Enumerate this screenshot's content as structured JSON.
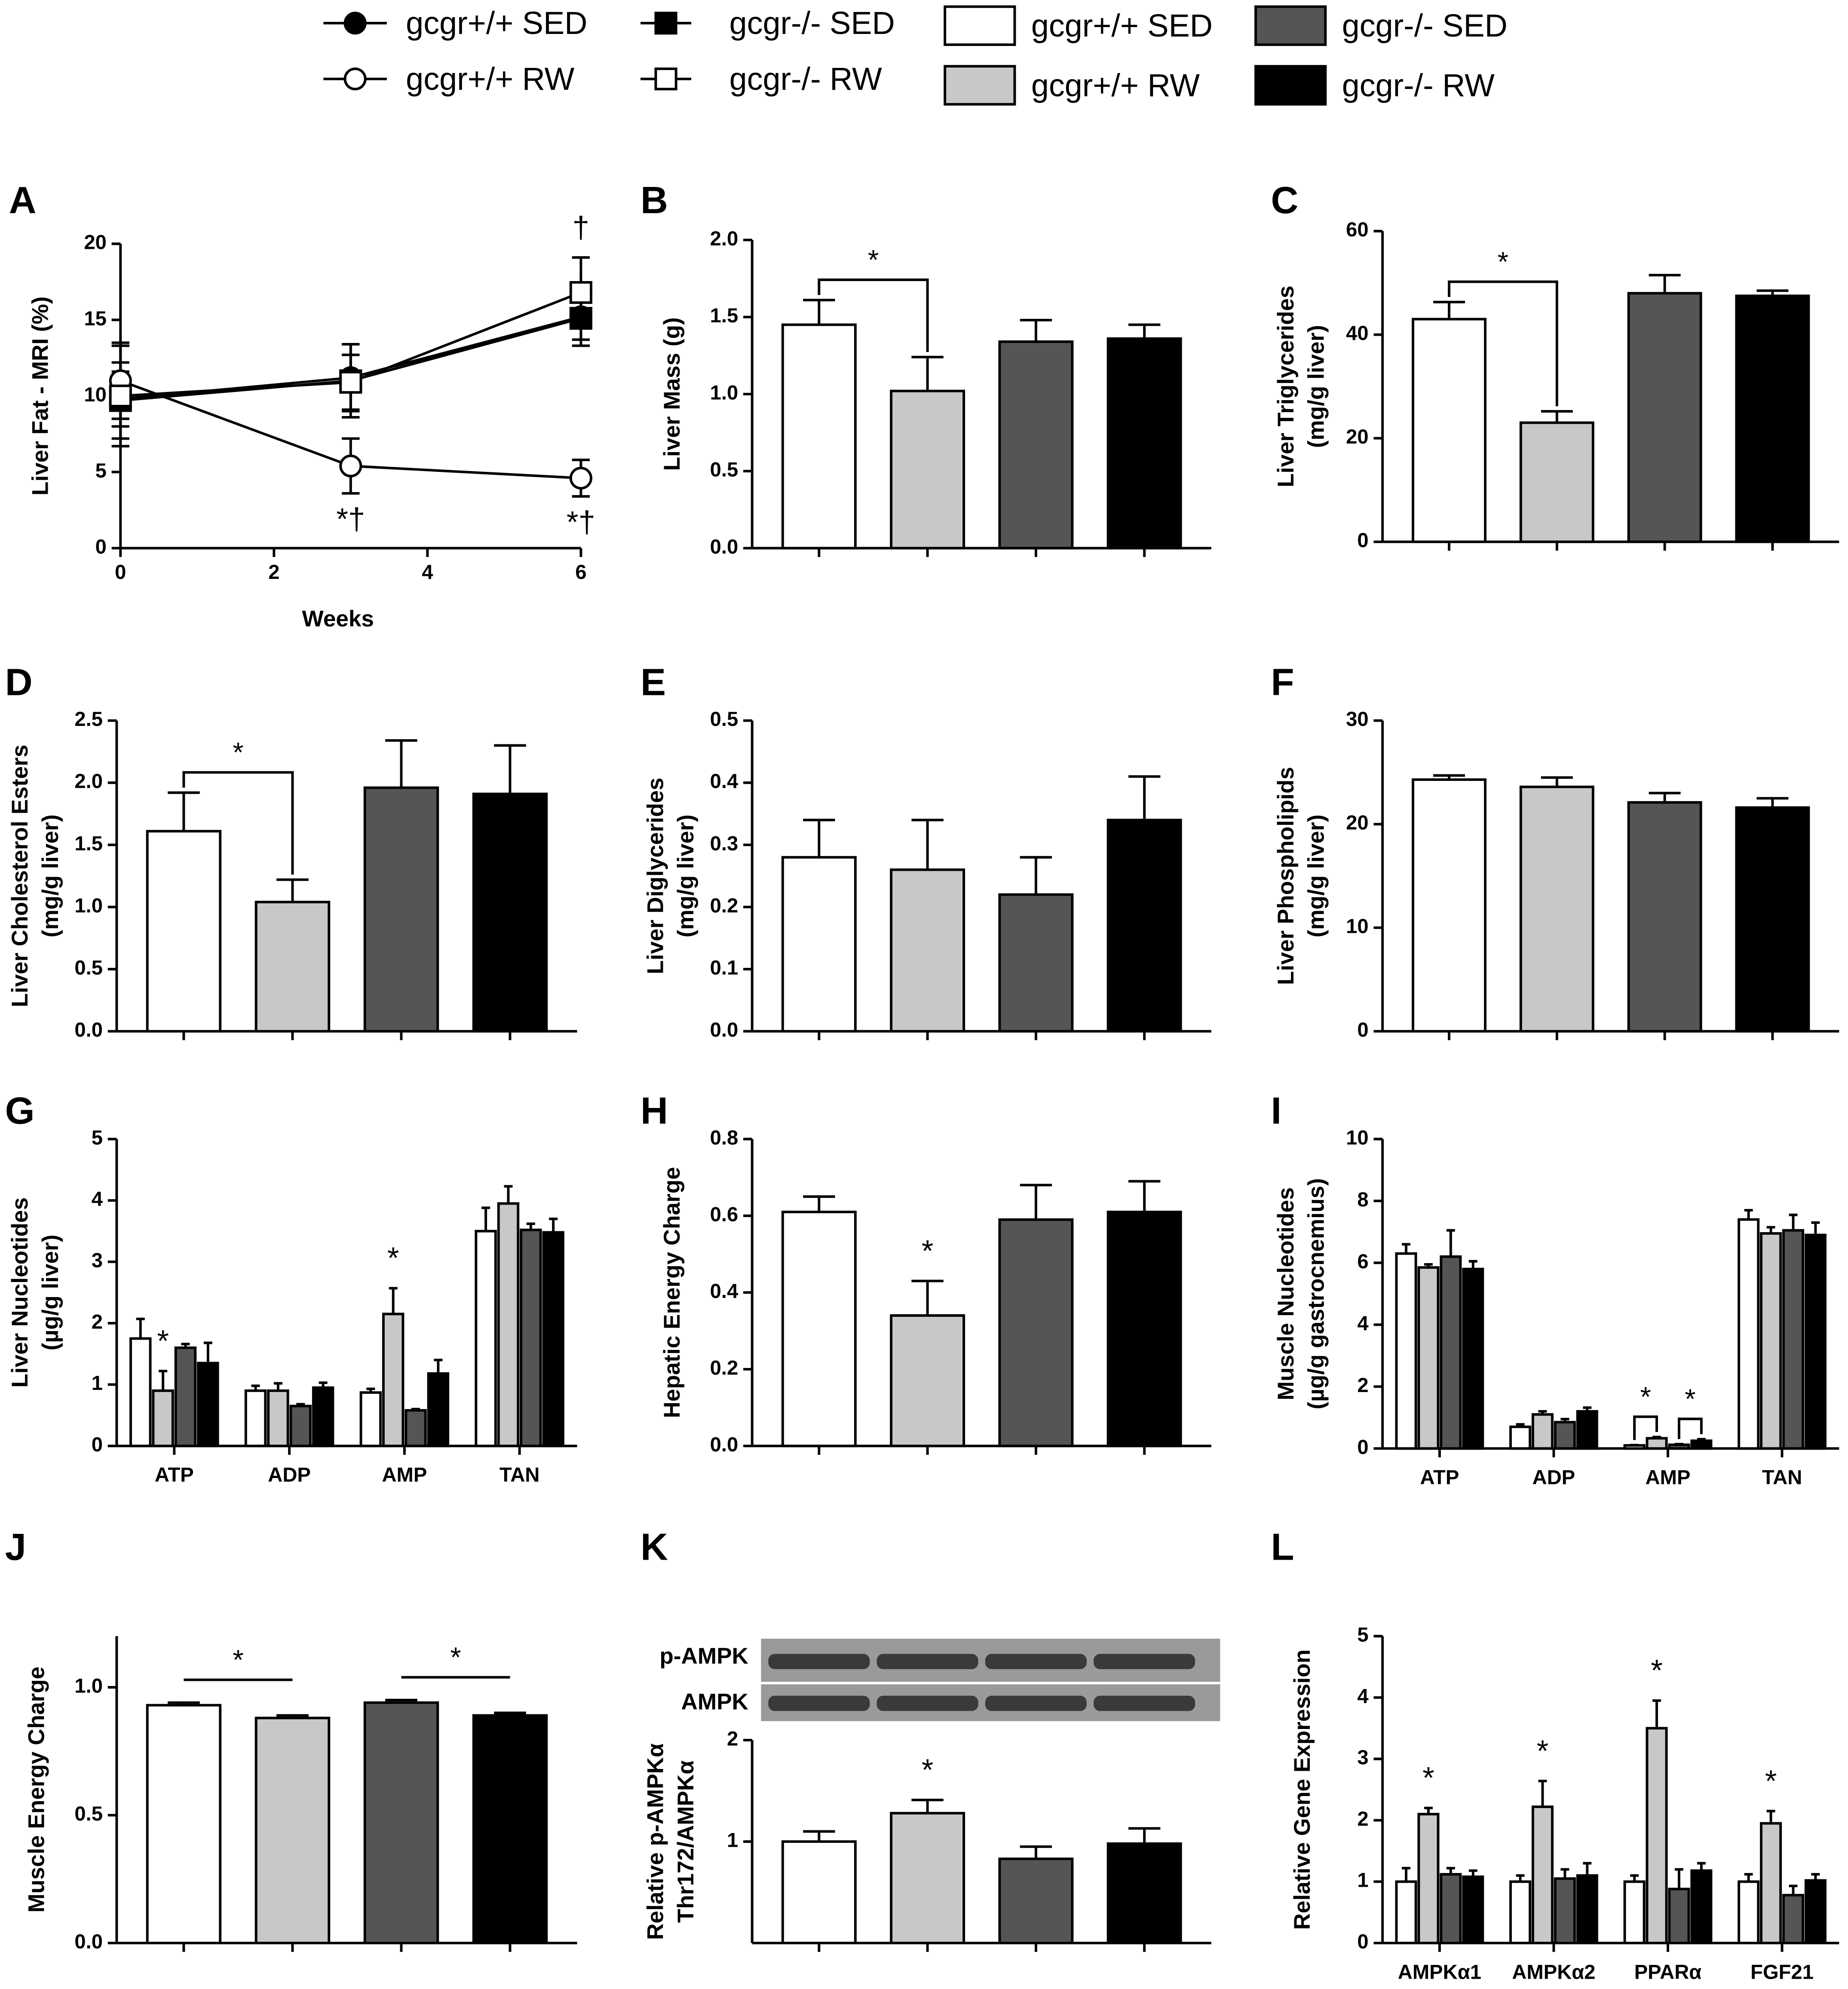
{
  "bar_legend": [
    {
      "name": "gcgr+/+ SED",
      "color": "#ffffff"
    },
    {
      "name": "gcgr+/+ RW",
      "color": "#c8c8c8"
    },
    {
      "name": "gcgr-/- SED",
      "color": "#555555"
    },
    {
      "name": "gcgr-/- RW",
      "color": "#000000"
    }
  ],
  "chart_data": [
    {
      "type": "line",
      "panel": "A",
      "xlabel": "Weeks",
      "ylabel": [
        "Liver Fat - MRI (%)"
      ],
      "x": [
        0,
        3,
        6
      ],
      "xlim": [
        0,
        6
      ],
      "xticks": [
        0,
        2,
        4,
        6
      ],
      "ylim": [
        0,
        20
      ],
      "yticks": [
        0,
        5,
        10,
        15,
        20
      ],
      "series": [
        {
          "name": "gcgr+/+ SED",
          "marker": "filled-circle",
          "values": [
            9.8,
            11.2,
            15.2
          ],
          "errors": [
            1.8,
            2.2,
            1.5
          ]
        },
        {
          "name": "gcgr+/+ RW",
          "marker": "open-circle",
          "values": [
            11,
            5.4,
            4.6
          ],
          "errors": [
            2.5,
            1.8,
            1.2
          ]
        },
        {
          "name": "gcgr-/- SED",
          "marker": "filled-square",
          "values": [
            9.7,
            11.0,
            15.1
          ],
          "errors": [
            2.5,
            2.4,
            1.8
          ]
        },
        {
          "name": "gcgr-/- RW",
          "marker": "open-square",
          "values": [
            10.0,
            10.9,
            16.8
          ],
          "errors": [
            3.3,
            1.8,
            2.3
          ]
        }
      ],
      "annotations": [
        {
          "text": "*†",
          "x": 3,
          "series": 1
        },
        {
          "text": "*†",
          "x": 6,
          "series": 1
        },
        {
          "text": "†",
          "x": 6
        }
      ]
    },
    {
      "type": "bar",
      "panel": "B",
      "ylabel": [
        "Liver Mass (g)"
      ],
      "values": [
        1.45,
        1.02,
        1.34,
        1.36
      ],
      "errors": [
        0.16,
        0.22,
        0.14,
        0.09
      ],
      "ylim": [
        0,
        2
      ],
      "yticks": [
        {
          "value": 0,
          "label": "0.0"
        },
        {
          "value": 0.5,
          "label": "0.5"
        },
        {
          "value": 1,
          "label": "1.0"
        },
        {
          "value": 1.5,
          "label": "1.5"
        },
        {
          "value": 2,
          "label": "2.0"
        }
      ],
      "significance": [
        {
          "label": "*",
          "bars": [
            0,
            1
          ]
        }
      ]
    },
    {
      "type": "bar",
      "panel": "C",
      "ylabel": [
        "Liver Triglycerides",
        "(mg/g liver)"
      ],
      "values": [
        43,
        23,
        48,
        47.5
      ],
      "errors": [
        3.3,
        2.2,
        3.5,
        1.0
      ],
      "ylim": [
        0,
        60
      ],
      "yticks": [
        0,
        20,
        40,
        60
      ],
      "significance": [
        {
          "label": "*",
          "bars": [
            0,
            1
          ]
        }
      ]
    },
    {
      "type": "bar",
      "panel": "D",
      "ylabel": [
        "Liver Cholesterol Esters",
        "(mg/g liver)"
      ],
      "values": [
        1.61,
        1.04,
        1.96,
        1.91
      ],
      "errors": [
        0.31,
        0.18,
        0.38,
        0.39
      ],
      "ylim": [
        0,
        2.5
      ],
      "yticks": [
        {
          "value": 0,
          "label": "0.0"
        },
        {
          "value": 0.5,
          "label": "0.5"
        },
        {
          "value": 1,
          "label": "1.0"
        },
        {
          "value": 1.5,
          "label": "1.5"
        },
        {
          "value": 2,
          "label": "2.0"
        },
        {
          "value": 2.5,
          "label": "2.5"
        }
      ],
      "significance": [
        {
          "label": "*",
          "bars": [
            0,
            1
          ]
        }
      ]
    },
    {
      "type": "bar",
      "panel": "E",
      "ylabel": [
        "Liver Diglycerides",
        "(mg/g liver)"
      ],
      "values": [
        0.28,
        0.26,
        0.22,
        0.34
      ],
      "errors": [
        0.06,
        0.08,
        0.06,
        0.07
      ],
      "ylim": [
        0,
        0.5
      ],
      "yticks": [
        {
          "value": 0,
          "label": "0.0"
        },
        0.1,
        0.2,
        0.3,
        0.4,
        0.5
      ]
    },
    {
      "type": "bar",
      "panel": "F",
      "ylabel": [
        "Liver Phospholipids",
        "(mg/g liver)"
      ],
      "values": [
        24.3,
        23.6,
        22.1,
        21.6
      ],
      "errors": [
        0.4,
        0.9,
        0.9,
        0.9
      ],
      "ylim": [
        0,
        30
      ],
      "yticks": [
        0,
        10,
        20,
        30
      ]
    },
    {
      "type": "grouped-bar",
      "panel": "G",
      "ylabel": [
        "Liver Nucleotides",
        "(µg/g liver)"
      ],
      "categories": [
        "ATP",
        "ADP",
        "AMP",
        "TAN"
      ],
      "ylim": [
        0,
        5
      ],
      "yticks": [
        0,
        1,
        2,
        3,
        4,
        5
      ],
      "series": [
        {
          "values": [
            1.75,
            0.9,
            0.87,
            3.5
          ],
          "errors": [
            0.32,
            0.08,
            0.06,
            0.38
          ]
        },
        {
          "values": [
            0.9,
            0.9,
            2.15,
            3.95
          ],
          "errors": [
            0.32,
            0.12,
            0.42,
            0.28
          ]
        },
        {
          "values": [
            1.6,
            0.65,
            0.58,
            3.52
          ],
          "errors": [
            0.06,
            0.03,
            0.02,
            0.1
          ]
        },
        {
          "values": [
            1.35,
            0.95,
            1.18,
            3.48
          ],
          "errors": [
            0.33,
            0.08,
            0.22,
            0.22
          ]
        }
      ],
      "significance": [
        {
          "label": "*",
          "category": 0,
          "bars": [
            1
          ]
        },
        {
          "label": "*",
          "category": 2,
          "bars": [
            1
          ]
        }
      ]
    },
    {
      "type": "bar",
      "panel": "H",
      "ylabel": [
        "Hepatic Energy Charge"
      ],
      "values": [
        0.61,
        0.34,
        0.59,
        0.61
      ],
      "errors": [
        0.04,
        0.09,
        0.09,
        0.08
      ],
      "ylim": [
        0,
        0.8
      ],
      "yticks": [
        {
          "value": 0,
          "label": "0.0"
        },
        0.2,
        0.4,
        0.6,
        0.8
      ],
      "significance": [
        {
          "label": "*",
          "bars": [
            1
          ]
        }
      ]
    },
    {
      "type": "grouped-bar",
      "panel": "I",
      "ylabel": [
        "Muscle Nucleotides",
        "(µg/g gastrocnemius)"
      ],
      "categories": [
        "ATP",
        "ADP",
        "AMP",
        "TAN"
      ],
      "ylim": [
        0,
        10
      ],
      "yticks": [
        0,
        2,
        4,
        6,
        8,
        10
      ],
      "series": [
        {
          "values": [
            6.3,
            0.7,
            0.1,
            7.4
          ],
          "errors": [
            0.3,
            0.08,
            0.01,
            0.3
          ]
        },
        {
          "values": [
            5.85,
            1.1,
            0.33,
            6.95
          ],
          "errors": [
            0.1,
            0.1,
            0.04,
            0.2
          ]
        },
        {
          "values": [
            6.2,
            0.85,
            0.12,
            7.05
          ],
          "errors": [
            0.85,
            0.1,
            0.02,
            0.5
          ]
        },
        {
          "values": [
            5.8,
            1.2,
            0.25,
            6.9
          ],
          "errors": [
            0.25,
            0.12,
            0.05,
            0.4
          ]
        }
      ],
      "significance": [
        {
          "label": "*",
          "category": 2,
          "bars": [
            0,
            1
          ]
        },
        {
          "label": "*",
          "category": 2,
          "bars": [
            2,
            3
          ]
        }
      ]
    },
    {
      "type": "bar",
      "panel": "J",
      "ylabel": [
        "Muscle Energy Charge"
      ],
      "values": [
        0.93,
        0.88,
        0.94,
        0.89
      ],
      "errors": [
        0.01,
        0.01,
        0.01,
        0.01
      ],
      "ylim": [
        0,
        1.2
      ],
      "yticks": [
        {
          "value": 0,
          "label": "0.0"
        },
        0.5,
        {
          "value": 1,
          "label": "1.0"
        }
      ],
      "bracket_style": "line",
      "significance": [
        {
          "label": "*",
          "bars": [
            0,
            1
          ]
        },
        {
          "label": "*",
          "bars": [
            2,
            3
          ]
        }
      ]
    },
    {
      "type": "bar",
      "panel": "K",
      "ylabel": [
        "Relative p-AMPKα",
        "Thr172/AMPKα"
      ],
      "blot_labels": [
        "p-AMPK",
        "AMPK"
      ],
      "values": [
        1.0,
        1.28,
        0.83,
        0.98
      ],
      "errors": [
        0.1,
        0.13,
        0.12,
        0.15
      ],
      "ylim": [
        0,
        2
      ],
      "yticks": [
        1,
        2
      ],
      "significance": [
        {
          "label": "*",
          "bars": [
            1
          ]
        }
      ]
    },
    {
      "type": "grouped-bar",
      "panel": "L",
      "ylabel": [
        "Relative Gene Expression"
      ],
      "categories": [
        "AMPKα1",
        "AMPKα2",
        "PPARα",
        "FGF21"
      ],
      "ylim": [
        0,
        5
      ],
      "yticks": [
        0,
        1,
        2,
        3,
        4,
        5
      ],
      "series": [
        {
          "values": [
            1.0,
            1.0,
            1.0,
            1.0
          ],
          "errors": [
            0.22,
            0.1,
            0.1,
            0.12
          ]
        },
        {
          "values": [
            2.1,
            2.22,
            3.5,
            1.95
          ],
          "errors": [
            0.1,
            0.42,
            0.45,
            0.2
          ]
        },
        {
          "values": [
            1.12,
            1.05,
            0.88,
            0.78
          ],
          "errors": [
            0.1,
            0.15,
            0.32,
            0.15
          ]
        },
        {
          "values": [
            1.08,
            1.1,
            1.18,
            1.02
          ],
          "errors": [
            0.1,
            0.2,
            0.12,
            0.1
          ]
        }
      ],
      "significance": [
        {
          "label": "*",
          "category": 0,
          "bars": [
            1
          ]
        },
        {
          "label": "*",
          "category": 1,
          "bars": [
            1
          ]
        },
        {
          "label": "*",
          "category": 2,
          "bars": [
            1
          ]
        },
        {
          "label": "*",
          "category": 3,
          "bars": [
            1
          ]
        }
      ]
    }
  ]
}
